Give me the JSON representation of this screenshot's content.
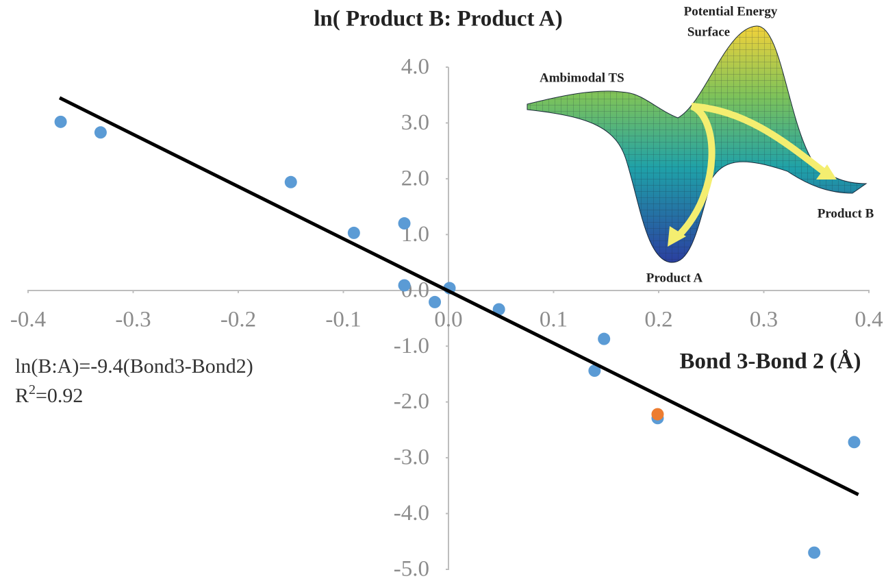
{
  "chart_data": {
    "type": "scatter",
    "title": "ln( Product B: Product A)",
    "x_label": "Bond 3-Bond 2 (Å)",
    "series": [
      {
        "color": "#5b9bd5",
        "x": [
          -0.369,
          -0.331,
          -0.15,
          -0.09,
          -0.042,
          -0.042,
          -0.013,
          0.001,
          0.048,
          0.148,
          0.139,
          0.199,
          0.348,
          0.386
        ],
        "values": [
          3.02,
          2.83,
          1.94,
          1.03,
          1.2,
          0.09,
          -0.21,
          0.04,
          -0.34,
          -0.87,
          -1.44,
          -2.29,
          -4.7,
          -2.72
        ]
      },
      {
        "color": "#ed7d31",
        "x": [
          0.199
        ],
        "values": [
          -2.22
        ]
      }
    ],
    "trendline": {
      "color": "#000000",
      "x": [
        -0.37,
        0.39
      ],
      "values": [
        3.45,
        -3.66
      ]
    },
    "equation": "ln(B:A)=-9.4(Bond3-Bond2)",
    "r_squared": {
      "base": "R",
      "sup": "2",
      "rest": "=0.92"
    },
    "xlim": [
      -0.4,
      0.4
    ],
    "xticks": [
      -0.4,
      -0.3,
      -0.2,
      -0.1,
      {
        "value": 0,
        "label": "0.0"
      },
      0.1,
      0.2,
      0.3,
      0.4
    ],
    "ylim": [
      -5,
      4
    ],
    "yticks": [
      {
        "value": 4,
        "label": "4.0"
      },
      {
        "value": 3,
        "label": "3.0"
      },
      {
        "value": 2,
        "label": "2.0"
      },
      {
        "value": 1,
        "label": "1.0"
      },
      {
        "value": 0,
        "label": "0.0"
      },
      {
        "value": -1,
        "label": "-1.0"
      },
      {
        "value": -2,
        "label": "-2.0"
      },
      {
        "value": -3,
        "label": "-3.0"
      },
      {
        "value": -4,
        "label": "-4.0"
      },
      {
        "value": -5,
        "label": "-5.0"
      }
    ],
    "grid": false,
    "inset": {
      "surface_title": [
        "Potential Energy",
        "Surface"
      ],
      "ts_label": "Ambimodal TS",
      "product_a": "Product A",
      "product_b": "Product B"
    }
  }
}
